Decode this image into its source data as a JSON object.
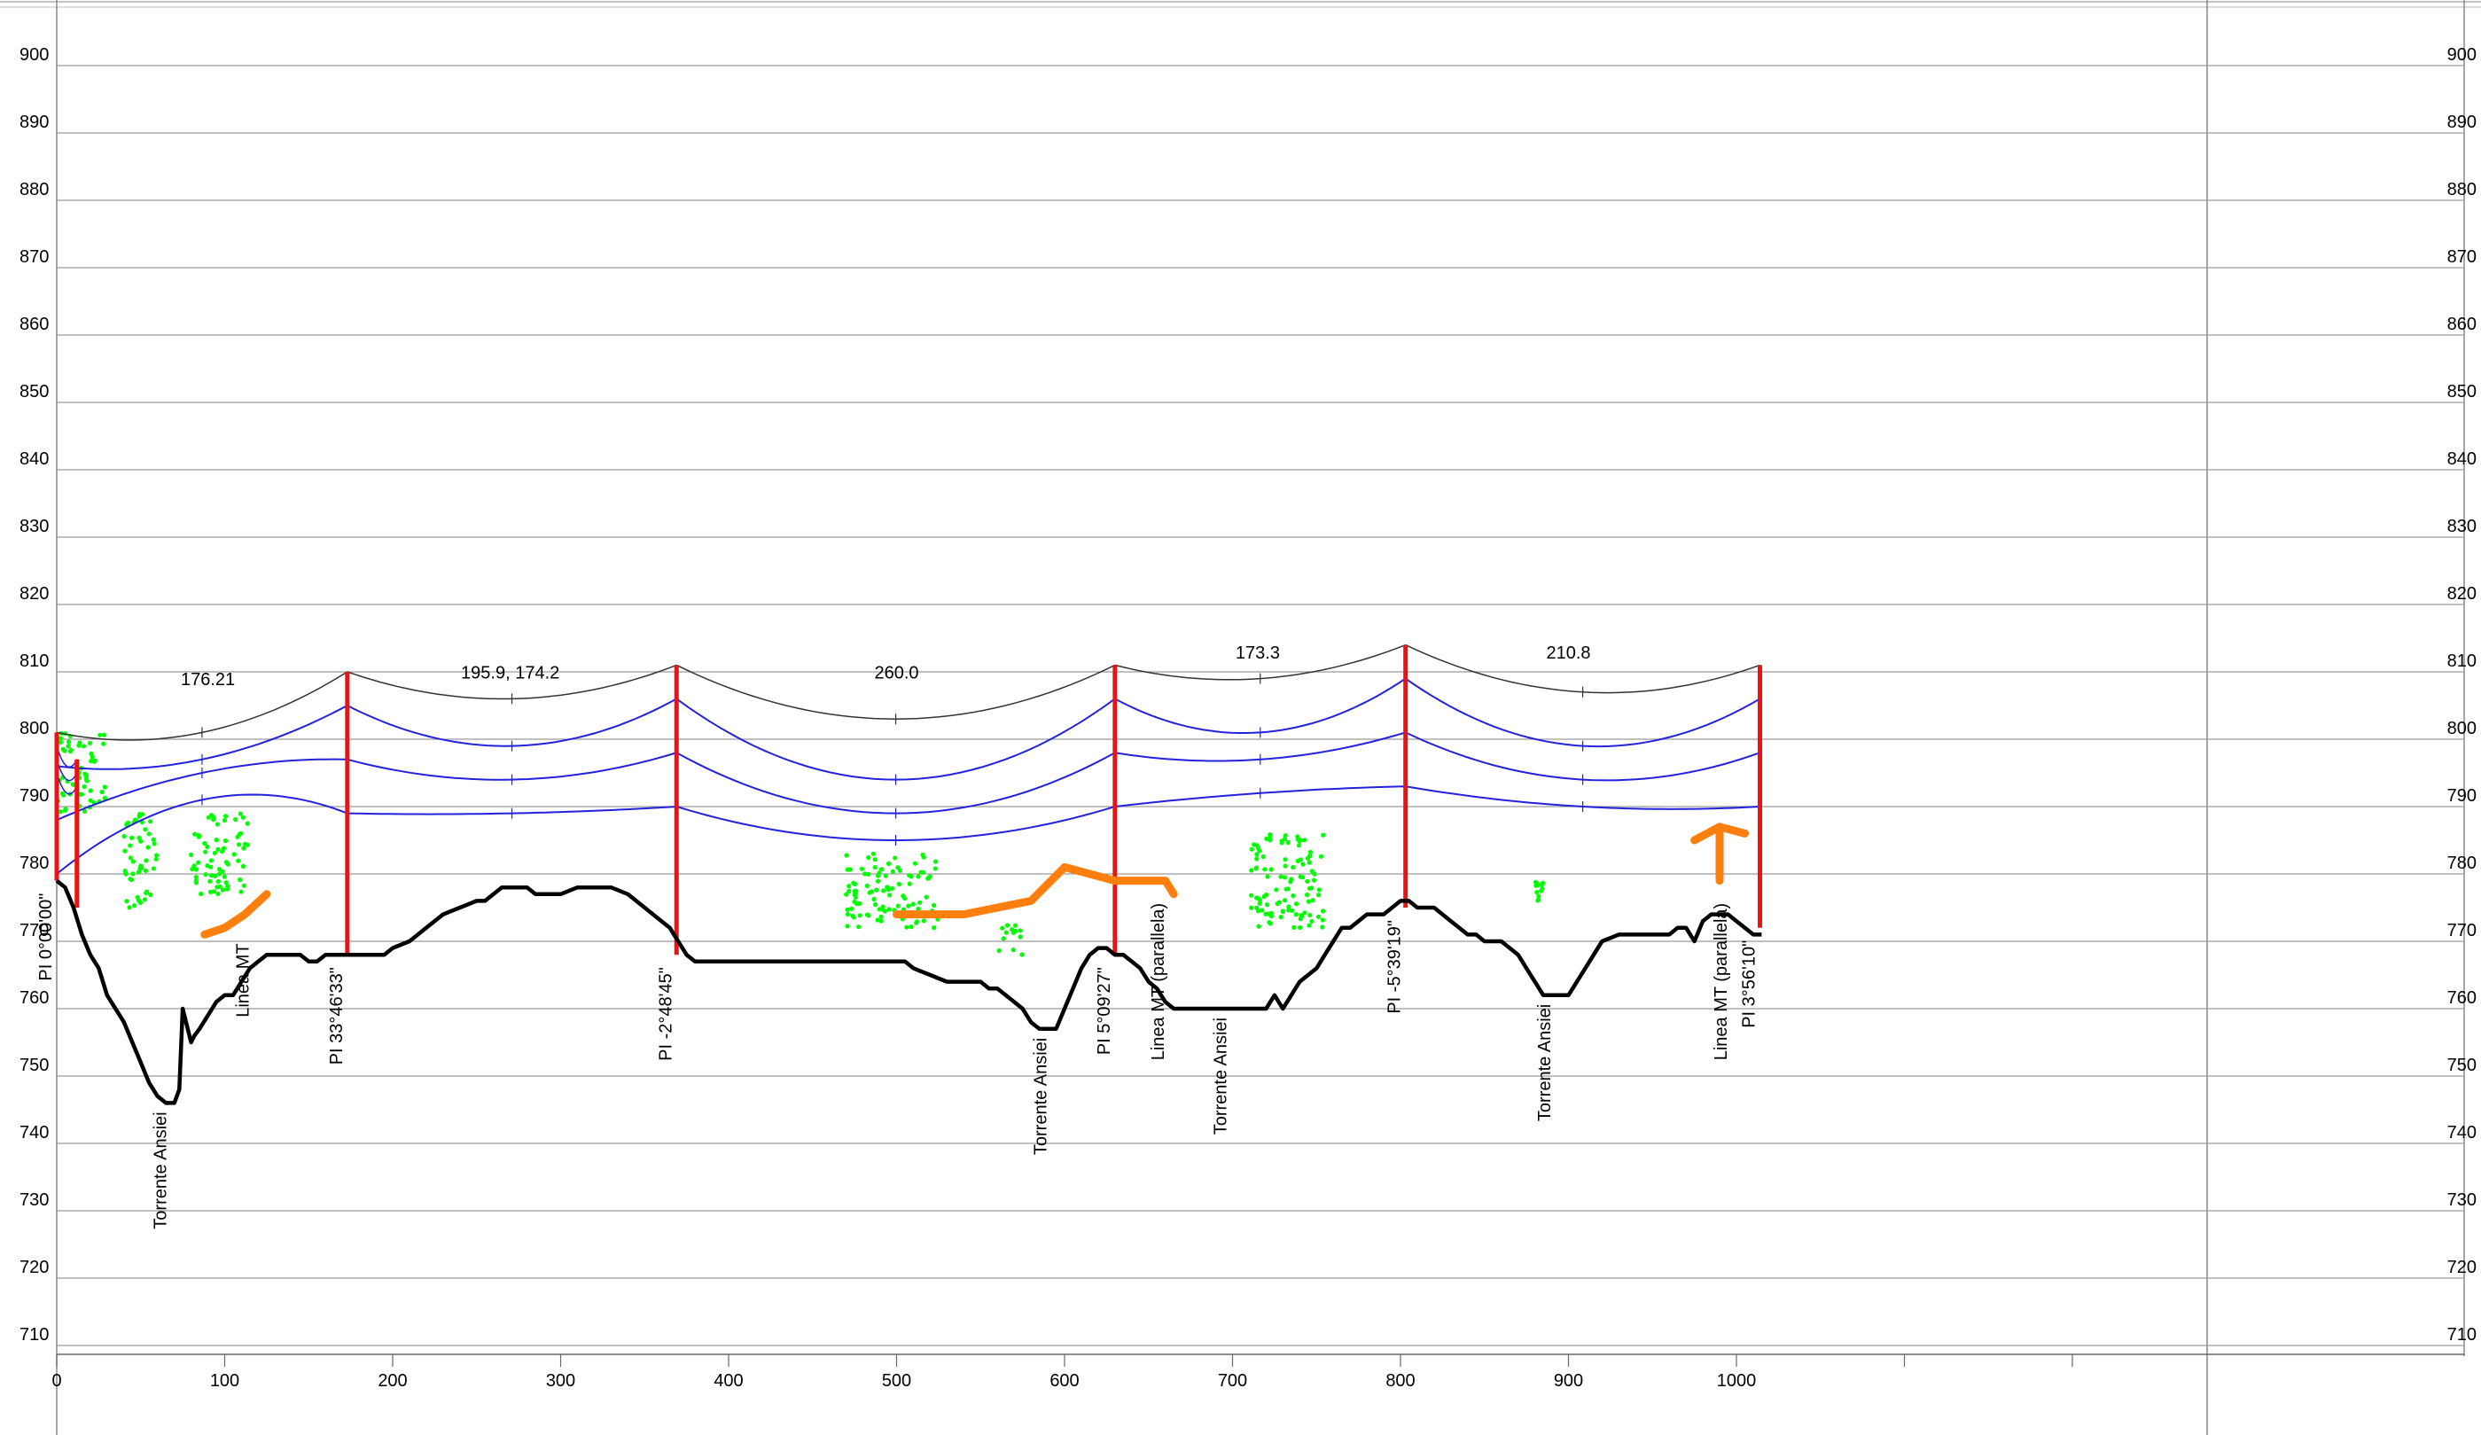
{
  "chart_data": {
    "type": "line",
    "title": "",
    "xlabel": "",
    "ylabel": "",
    "xlim": [
      0,
      1280
    ],
    "ylim": [
      705,
      910
    ],
    "x_ticks": [
      0,
      100,
      200,
      300,
      400,
      500,
      600,
      700,
      800,
      900,
      1000
    ],
    "y_ticks": [
      710,
      720,
      730,
      740,
      750,
      760,
      770,
      780,
      790,
      800,
      810,
      820,
      830,
      840,
      850,
      860,
      870,
      880,
      890,
      900
    ],
    "grid": true,
    "terrain": {
      "color": "#000000",
      "x": [
        0,
        5,
        10,
        15,
        20,
        25,
        30,
        35,
        40,
        45,
        50,
        55,
        60,
        65,
        70,
        73,
        75,
        78,
        80,
        82,
        85,
        90,
        95,
        100,
        105,
        110,
        115,
        120,
        125,
        130,
        135,
        140,
        145,
        150,
        155,
        160,
        165,
        170,
        175,
        180,
        185,
        190,
        195,
        200,
        210,
        220,
        230,
        240,
        250,
        255,
        260,
        265,
        270,
        275,
        280,
        285,
        290,
        300,
        310,
        320,
        330,
        340,
        350,
        355,
        360,
        365,
        370,
        375,
        380,
        390,
        400,
        410,
        420,
        430,
        440,
        450,
        460,
        470,
        480,
        490,
        500,
        505,
        510,
        520,
        530,
        540,
        550,
        555,
        560,
        570,
        575,
        580,
        585,
        590,
        595,
        600,
        605,
        610,
        615,
        620,
        625,
        630,
        635,
        640,
        645,
        650,
        655,
        660,
        665,
        670,
        680,
        690,
        700,
        710,
        720,
        725,
        730,
        735,
        740,
        745,
        750,
        755,
        760,
        765,
        770,
        775,
        780,
        790,
        800,
        805,
        810,
        815,
        820,
        825,
        830,
        835,
        840,
        845,
        850,
        855,
        860,
        865,
        870,
        875,
        880,
        885,
        890,
        895,
        900,
        905,
        910,
        920,
        930,
        940,
        950,
        955,
        960,
        965,
        970,
        975,
        980,
        985,
        990,
        995,
        1000,
        1005,
        1010,
        1015
      ],
      "y": [
        779,
        778,
        775,
        771,
        768,
        766,
        762,
        760,
        758,
        755,
        752,
        749,
        747,
        746,
        746,
        748,
        760,
        757,
        755,
        756,
        757,
        759,
        761,
        762,
        762,
        764,
        766,
        767,
        768,
        768,
        768,
        768,
        768,
        767,
        767,
        768,
        768,
        768,
        768,
        768,
        768,
        768,
        768,
        769,
        770,
        772,
        774,
        775,
        776,
        776,
        777,
        778,
        778,
        778,
        778,
        777,
        777,
        777,
        778,
        778,
        778,
        777,
        775,
        774,
        773,
        772,
        770,
        768,
        767,
        767,
        767,
        767,
        767,
        767,
        767,
        767,
        767,
        767,
        767,
        767,
        767,
        767,
        766,
        765,
        764,
        764,
        764,
        763,
        763,
        761,
        760,
        758,
        757,
        757,
        757,
        760,
        763,
        766,
        768,
        769,
        769,
        768,
        768,
        767,
        766,
        764,
        763,
        761,
        760,
        760,
        760,
        760,
        760,
        760,
        760,
        762,
        760,
        762,
        764,
        765,
        766,
        768,
        770,
        772,
        772,
        773,
        774,
        774,
        776,
        776,
        775,
        775,
        775,
        774,
        773,
        772,
        771,
        771,
        770,
        770,
        770,
        769,
        768,
        766,
        764,
        762,
        762,
        762,
        762,
        764,
        766,
        770,
        771,
        771,
        771,
        771,
        771,
        772,
        772,
        770,
        773,
        774,
        774,
        774,
        773,
        772,
        771,
        771
      ]
    },
    "supports": [
      {
        "x": 0,
        "base": 779,
        "top": 801,
        "label": "PI 0°00'00\""
      },
      {
        "x": 12,
        "base": 775,
        "top": 797,
        "label": ""
      },
      {
        "x": 173,
        "base": 768,
        "top": 810,
        "label": "PI 33°46'33\""
      },
      {
        "x": 369,
        "base": 768,
        "top": 811,
        "label": "PI -2°48'45\""
      },
      {
        "x": 630,
        "base": 768,
        "top": 811,
        "label": "PI 5°09'27\""
      },
      {
        "x": 803,
        "base": 775,
        "top": 814,
        "label": "PI -5°39'19\""
      },
      {
        "x": 1014,
        "base": 772,
        "top": 811,
        "label": "PI 3°56'10\""
      }
    ],
    "span_labels": [
      {
        "x": 90,
        "y": 808,
        "text": "176.21"
      },
      {
        "x": 270,
        "y": 809,
        "text": "195.9, 174.2"
      },
      {
        "x": 500,
        "y": 809,
        "text": "260.0"
      },
      {
        "x": 715,
        "y": 812,
        "text": "173.3"
      },
      {
        "x": 900,
        "y": 812,
        "text": "210.8"
      }
    ],
    "feature_labels": [
      {
        "x": 61,
        "y": 746,
        "text": "Torrente Ansiei"
      },
      {
        "x": 110,
        "y": 771,
        "text": "Linea MT"
      },
      {
        "x": 585,
        "y": 757,
        "text": "Torrente Ansiei"
      },
      {
        "x": 655,
        "y": 777,
        "text": "Linea MT (parallela)"
      },
      {
        "x": 692,
        "y": 760,
        "text": "Torrente Ansiei"
      },
      {
        "x": 885,
        "y": 762,
        "text": "Torrente Ansiei"
      },
      {
        "x": 990,
        "y": 777,
        "text": "Linea MT (parallela)"
      }
    ],
    "conductor_spans": [
      {
        "x1": 0,
        "x2": 173,
        "tops": [
          801,
          810
        ],
        "black_sag": 801,
        "blue_sags": [
          797,
          795,
          791
        ]
      },
      {
        "x1": 173,
        "x2": 369,
        "tops": [
          810,
          811
        ],
        "black_sag": 806,
        "blue_sags": [
          799,
          794,
          789
        ]
      },
      {
        "x1": 369,
        "x2": 630,
        "tops": [
          811,
          811
        ],
        "black_sag": 803,
        "blue_sags": [
          794,
          789,
          785
        ]
      },
      {
        "x1": 630,
        "x2": 803,
        "tops": [
          811,
          814
        ],
        "black_sag": 809,
        "blue_sags": [
          801,
          797,
          792
        ]
      },
      {
        "x1": 803,
        "x2": 1014,
        "tops": [
          814,
          811
        ],
        "black_sag": 807,
        "blue_sags": [
          799,
          794,
          790
        ]
      }
    ],
    "series": [
      {
        "type": "line",
        "color": "#000000"
      },
      {
        "type": "line",
        "color": "#ee1111"
      },
      {
        "type": "line",
        "color": "#2222dd"
      },
      {
        "type": "line",
        "color": "#ff7f0e"
      },
      {
        "type": "scatter",
        "color": "#00ff00"
      }
    ],
    "vegetation_clusters": [
      {
        "x": [
          0,
          30
        ],
        "y": [
          789,
          801
        ]
      },
      {
        "x": [
          40,
          60
        ],
        "y": [
          775,
          789
        ]
      },
      {
        "x": [
          80,
          115
        ],
        "y": [
          777,
          789
        ]
      },
      {
        "x": [
          470,
          525
        ],
        "y": [
          772,
          783
        ]
      },
      {
        "x": [
          560,
          575
        ],
        "y": [
          768,
          773
        ]
      },
      {
        "x": [
          710,
          755
        ],
        "y": [
          772,
          786
        ]
      },
      {
        "x": [
          880,
          885
        ],
        "y": [
          776,
          779
        ]
      }
    ],
    "orange_marks": [
      {
        "x": [
          88,
          100,
          112,
          125
        ],
        "y": [
          771,
          772,
          774,
          777
        ]
      },
      {
        "x": [
          500,
          540,
          580,
          600,
          630,
          660,
          665
        ],
        "y": [
          774,
          774,
          776,
          781,
          779,
          779,
          777
        ]
      },
      {
        "x": [
          975,
          990,
          1005
        ],
        "y": [
          785,
          787,
          786
        ]
      },
      {
        "x": [
          990,
          990
        ],
        "y": [
          779,
          787
        ]
      }
    ]
  }
}
